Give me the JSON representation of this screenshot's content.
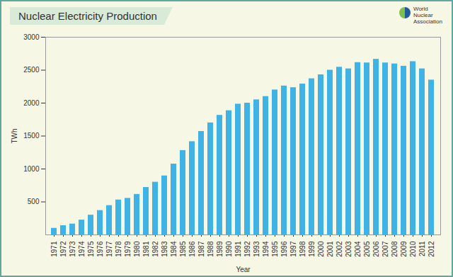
{
  "chart_data": {
    "type": "bar",
    "title": "Nuclear Electricity Production",
    "logo": "World Nuclear Association",
    "x_label": "Year",
    "y_label": "TWh",
    "categories": [
      "1971",
      "1972",
      "1973",
      "1974",
      "1975",
      "1976",
      "1977",
      "1978",
      "1979",
      "1980",
      "1981",
      "1982",
      "1983",
      "1984",
      "1985",
      "1986",
      "1987",
      "1988",
      "1989",
      "1990",
      "1991",
      "1992",
      "1993",
      "1994",
      "1995",
      "1996",
      "1997",
      "1998",
      "1999",
      "2000",
      "2001",
      "2002",
      "2003",
      "2004",
      "2005",
      "2006",
      "2007",
      "2008",
      "2009",
      "2010",
      "2011",
      "2012"
    ],
    "values": [
      100,
      140,
      165,
      225,
      300,
      370,
      445,
      530,
      555,
      615,
      720,
      800,
      895,
      1075,
      1280,
      1415,
      1570,
      1700,
      1815,
      1885,
      1985,
      2000,
      2050,
      2100,
      2200,
      2260,
      2235,
      2290,
      2370,
      2430,
      2500,
      2545,
      2520,
      2615,
      2610,
      2665,
      2610,
      2595,
      2560,
      2630,
      2520,
      2350
    ],
    "color": "#3fb3e6",
    "ylim": [
      0,
      3000
    ],
    "yticks": [
      500,
      1000,
      1500,
      2000,
      2500,
      3000
    ],
    "grid": false
  }
}
